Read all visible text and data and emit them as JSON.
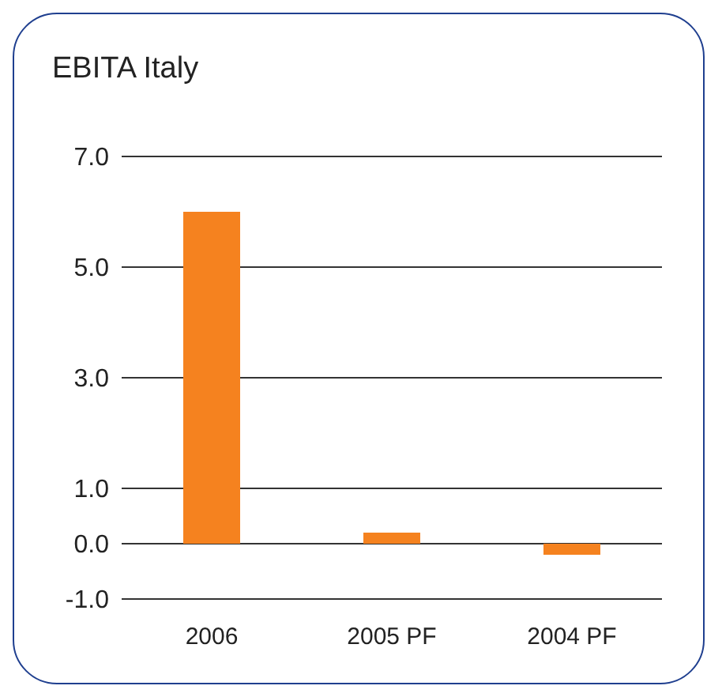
{
  "chart_data": {
    "type": "bar",
    "title": "EBITA Italy",
    "categories": [
      "2006",
      "2005 PF",
      "2004 PF"
    ],
    "values": [
      6.0,
      0.2,
      -0.2
    ],
    "color": "#f5821f",
    "ylim": [
      -1,
      7
    ],
    "yticks": [
      {
        "value": 7,
        "label": "7.0"
      },
      {
        "value": 5,
        "label": "5.0"
      },
      {
        "value": 3,
        "label": "3.0"
      },
      {
        "value": 1,
        "label": "1.0"
      },
      {
        "value": 0,
        "label": "0.0"
      },
      {
        "value": -1,
        "label": "-1.0"
      }
    ],
    "grid": "y"
  }
}
